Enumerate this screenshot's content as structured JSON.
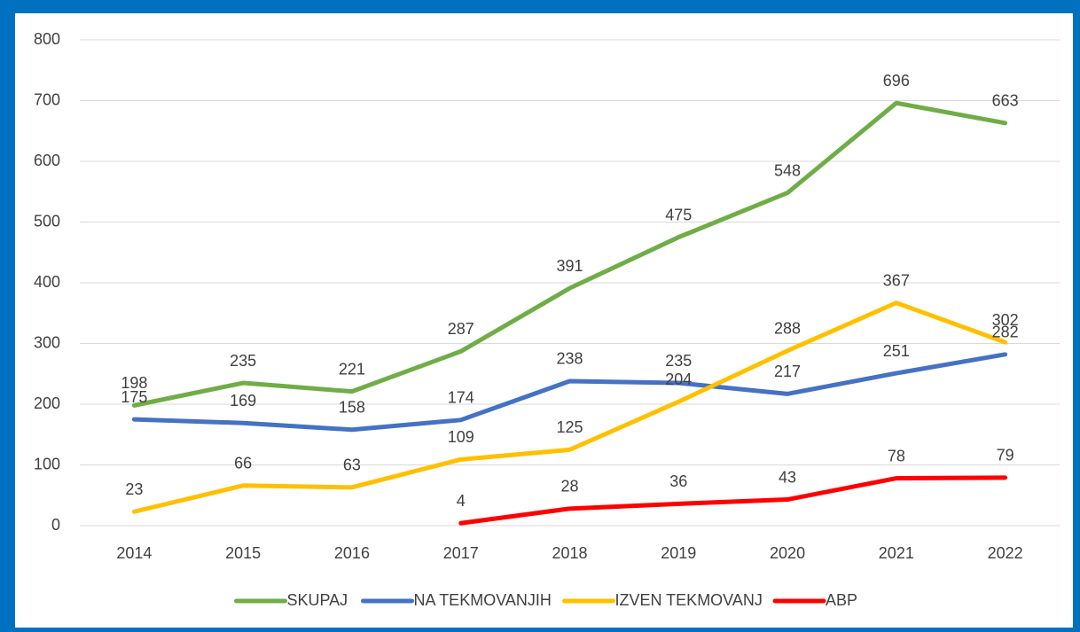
{
  "chart_data": {
    "type": "line",
    "categories": [
      "2014",
      "2015",
      "2016",
      "2017",
      "2018",
      "2019",
      "2020",
      "2021",
      "2022"
    ],
    "series": [
      {
        "name": "SKUPAJ",
        "color": "#70AD47",
        "values": [
          198,
          235,
          221,
          287,
          391,
          475,
          548,
          696,
          663
        ]
      },
      {
        "name": "NA TEKMOVANJIH",
        "color": "#4472C4",
        "values": [
          175,
          169,
          158,
          174,
          238,
          235,
          217,
          251,
          282
        ]
      },
      {
        "name": "IZVEN TEKMOVANJ",
        "color": "#FFC000",
        "values": [
          23,
          66,
          63,
          109,
          125,
          204,
          288,
          367,
          302
        ]
      },
      {
        "name": "ABP",
        "color": "#FF0000",
        "values": [
          null,
          null,
          null,
          4,
          28,
          36,
          43,
          78,
          79
        ]
      }
    ],
    "ylim": [
      0,
      800
    ],
    "yticks": [
      0,
      100,
      200,
      300,
      400,
      500,
      600,
      700,
      800
    ],
    "grid": true,
    "legend": "bottom"
  }
}
